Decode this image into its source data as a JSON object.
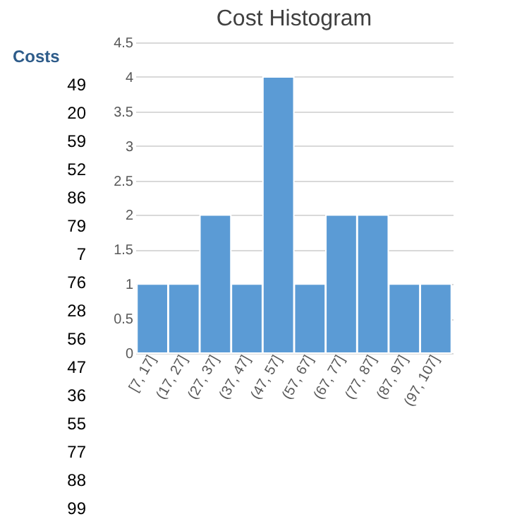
{
  "chart_data": {
    "type": "bar",
    "title": "Cost Histogram",
    "categories": [
      "[7, 17]",
      "(17, 27]",
      "(27, 37]",
      "(37, 47]",
      "(47, 57]",
      "(57, 67]",
      "(67, 77]",
      "(77, 87]",
      "(87, 97]",
      "(97, 107]"
    ],
    "values": [
      1,
      1,
      2,
      1,
      4,
      1,
      2,
      2,
      1,
      1
    ],
    "color": "#5b9bd5",
    "ylim": [
      0,
      4.5
    ],
    "yticks": [
      0,
      0.5,
      1,
      1.5,
      2,
      2.5,
      3,
      3.5,
      4,
      4.5
    ],
    "grid": "y",
    "annotations": [
      "Costs",
      "49",
      "20",
      "59",
      "52",
      "86",
      "79",
      "7",
      "76",
      "28",
      "56",
      "47",
      "36",
      "55",
      "77",
      "88",
      "99"
    ]
  }
}
